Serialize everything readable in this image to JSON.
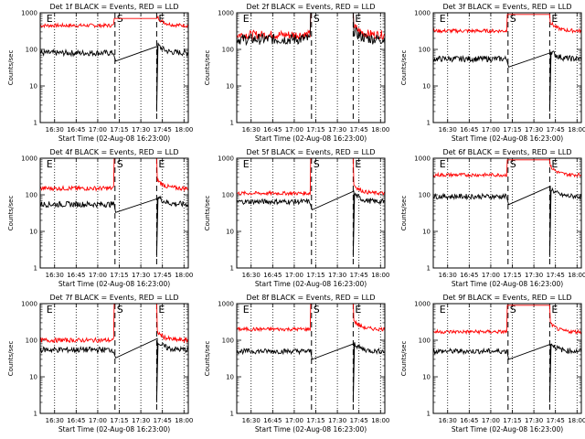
{
  "chart_data": [
    {
      "type": "line",
      "title": "Det 1f BLACK = Events, RED = LLD",
      "ylabel": "Counts/sec",
      "xlabel": "Start Time (02-Aug-08 16:23:00)",
      "yscale": "log",
      "ylim": [
        1,
        1000
      ],
      "xlim": [
        "16:20",
        "18:03"
      ],
      "x_tick_labels": [
        "16:30",
        "16:45",
        "17:00",
        "17:15",
        "17:30",
        "17:45",
        "18:00"
      ],
      "y_tick_labels": [
        "1",
        "10",
        "100",
        "1000"
      ],
      "markers": [
        {
          "label": "E",
          "time": "16:23"
        },
        {
          "label": "S",
          "time": "17:12"
        },
        {
          "label": "E",
          "time": "17:41"
        }
      ],
      "series": [
        {
          "name": "RED = LLD",
          "color": "#ff0000",
          "flat": 450,
          "spike": 700,
          "noise": 0.05
        },
        {
          "name": "BLACK = Events",
          "color": "#000000",
          "flat": 80,
          "spike": 80,
          "noise": 0.08
        }
      ]
    },
    {
      "type": "line",
      "title": "Det 2f BLACK = Events, RED = LLD",
      "ylabel": "Counts/sec",
      "xlabel": "Start Time (02-Aug-08 16:23:00)",
      "yscale": "log",
      "ylim": [
        1,
        1000
      ],
      "xlim": [
        "16:20",
        "18:03"
      ],
      "x_tick_labels": [
        "16:30",
        "16:45",
        "17:00",
        "17:15",
        "17:30",
        "17:45",
        "18:00"
      ],
      "y_tick_labels": [
        "1",
        "10",
        "100",
        "1000"
      ],
      "markers": [
        {
          "label": "E",
          "time": "16:23"
        },
        {
          "label": "S",
          "time": "17:12"
        },
        {
          "label": "E",
          "time": "17:41"
        }
      ],
      "series": [
        {
          "name": "RED = LLD",
          "color": "#ff0000",
          "flat": 250,
          "spike": 1300,
          "noise": 0.12
        },
        {
          "name": "BLACK = Events",
          "color": "#000000",
          "flat": 190,
          "spike": 1300,
          "noise": 0.15
        }
      ]
    },
    {
      "type": "line",
      "title": "Det 3f BLACK = Events, RED = LLD",
      "ylabel": "Counts/sec",
      "xlabel": "Start Time (02-Aug-08 16:23:00)",
      "yscale": "log",
      "ylim": [
        1,
        1000
      ],
      "xlim": [
        "16:20",
        "18:03"
      ],
      "x_tick_labels": [
        "16:30",
        "16:45",
        "17:00",
        "17:15",
        "17:30",
        "17:45",
        "18:00"
      ],
      "y_tick_labels": [
        "1",
        "10",
        "100",
        "1000"
      ],
      "markers": [
        {
          "label": "E",
          "time": "16:23"
        },
        {
          "label": "S",
          "time": "17:12"
        },
        {
          "label": "E",
          "time": "17:41"
        }
      ],
      "series": [
        {
          "name": "RED = LLD",
          "color": "#ff0000",
          "flat": 320,
          "spike": 900,
          "noise": 0.05
        },
        {
          "name": "BLACK = Events",
          "color": "#000000",
          "flat": 55,
          "spike": 55,
          "noise": 0.08
        }
      ]
    },
    {
      "type": "line",
      "title": "Det 4f BLACK = Events, RED = LLD",
      "ylabel": "Counts/sec",
      "xlabel": "Start Time (02-Aug-08 16:23:00)",
      "yscale": "log",
      "ylim": [
        1,
        1000
      ],
      "xlim": [
        "16:20",
        "18:03"
      ],
      "x_tick_labels": [
        "16:30",
        "16:45",
        "17:00",
        "17:15",
        "17:30",
        "17:45",
        "18:00"
      ],
      "y_tick_labels": [
        "1",
        "10",
        "100",
        "1000"
      ],
      "markers": [
        {
          "label": "E",
          "time": "16:23"
        },
        {
          "label": "S",
          "time": "17:12"
        },
        {
          "label": "E",
          "time": "17:41"
        }
      ],
      "series": [
        {
          "name": "RED = LLD",
          "color": "#ff0000",
          "flat": 150,
          "spike": 1300,
          "noise": 0.06
        },
        {
          "name": "BLACK = Events",
          "color": "#000000",
          "flat": 55,
          "spike": 55,
          "noise": 0.08
        }
      ]
    },
    {
      "type": "line",
      "title": "Det 5f BLACK = Events, RED = LLD",
      "ylabel": "Counts/sec",
      "xlabel": "Start Time (02-Aug-08 16:23:00)",
      "yscale": "log",
      "ylim": [
        1,
        1000
      ],
      "xlim": [
        "16:20",
        "18:03"
      ],
      "x_tick_labels": [
        "16:30",
        "16:45",
        "17:00",
        "17:15",
        "17:30",
        "17:45",
        "18:00"
      ],
      "y_tick_labels": [
        "1",
        "10",
        "100",
        "1000"
      ],
      "markers": [
        {
          "label": "E",
          "time": "16:23"
        },
        {
          "label": "S",
          "time": "17:12"
        },
        {
          "label": "E",
          "time": "17:41"
        }
      ],
      "series": [
        {
          "name": "RED = LLD",
          "color": "#ff0000",
          "flat": 110,
          "spike": 1300,
          "noise": 0.05
        },
        {
          "name": "BLACK = Events",
          "color": "#000000",
          "flat": 65,
          "spike": 65,
          "noise": 0.07
        }
      ]
    },
    {
      "type": "line",
      "title": "Det 6f BLACK = Events, RED = LLD",
      "ylabel": "Counts/sec",
      "xlabel": "Start Time (02-Aug-08 16:23:00)",
      "yscale": "log",
      "ylim": [
        1,
        1000
      ],
      "xlim": [
        "16:20",
        "18:03"
      ],
      "x_tick_labels": [
        "16:30",
        "16:45",
        "17:00",
        "17:15",
        "17:30",
        "17:45",
        "18:00"
      ],
      "y_tick_labels": [
        "1",
        "10",
        "100",
        "1000"
      ],
      "markers": [
        {
          "label": "E",
          "time": "16:23"
        },
        {
          "label": "S",
          "time": "17:12"
        },
        {
          "label": "E",
          "time": "17:41"
        }
      ],
      "series": [
        {
          "name": "RED = LLD",
          "color": "#ff0000",
          "flat": 350,
          "spike": 900,
          "noise": 0.05
        },
        {
          "name": "BLACK = Events",
          "color": "#000000",
          "flat": 90,
          "spike": 90,
          "noise": 0.07
        }
      ]
    },
    {
      "type": "line",
      "title": "Det 7f BLACK = Events, RED = LLD",
      "ylabel": "Counts/sec",
      "xlabel": "Start Time (02-Aug-08 16:23:00)",
      "yscale": "log",
      "ylim": [
        1,
        1000
      ],
      "xlim": [
        "16:20",
        "18:03"
      ],
      "x_tick_labels": [
        "16:30",
        "16:45",
        "17:00",
        "17:15",
        "17:30",
        "17:45",
        "18:00"
      ],
      "y_tick_labels": [
        "1",
        "10",
        "100",
        "1000"
      ],
      "markers": [
        {
          "label": "E",
          "time": "16:23"
        },
        {
          "label": "S",
          "time": "17:12"
        },
        {
          "label": "E",
          "time": "17:41"
        }
      ],
      "series": [
        {
          "name": "RED = LLD",
          "color": "#ff0000",
          "flat": 100,
          "spike": 1300,
          "noise": 0.06
        },
        {
          "name": "BLACK = Events",
          "color": "#000000",
          "flat": 55,
          "spike": 55,
          "noise": 0.08
        }
      ]
    },
    {
      "type": "line",
      "title": "Det 8f BLACK = Events, RED = LLD",
      "ylabel": "Counts/sec",
      "xlabel": "Start Time (02-Aug-08 16:23:00)",
      "yscale": "log",
      "ylim": [
        1,
        1000
      ],
      "xlim": [
        "16:20",
        "18:03"
      ],
      "x_tick_labels": [
        "16:30",
        "16:45",
        "17:00",
        "17:15",
        "17:30",
        "17:45",
        "18:00"
      ],
      "y_tick_labels": [
        "1",
        "10",
        "100",
        "1000"
      ],
      "markers": [
        {
          "label": "E",
          "time": "16:23"
        },
        {
          "label": "S",
          "time": "17:12"
        },
        {
          "label": "E",
          "time": "17:41"
        }
      ],
      "series": [
        {
          "name": "RED = LLD",
          "color": "#ff0000",
          "flat": 200,
          "spike": 1300,
          "noise": 0.05
        },
        {
          "name": "BLACK = Events",
          "color": "#000000",
          "flat": 50,
          "spike": 50,
          "noise": 0.07
        }
      ]
    },
    {
      "type": "line",
      "title": "Det 9f BLACK = Events, RED = LLD",
      "ylabel": "Counts/sec",
      "xlabel": "Start Time (02-Aug-08 16:23:00)",
      "yscale": "log",
      "ylim": [
        1,
        1000
      ],
      "xlim": [
        "16:20",
        "18:03"
      ],
      "x_tick_labels": [
        "16:30",
        "16:45",
        "17:00",
        "17:15",
        "17:30",
        "17:45",
        "18:00"
      ],
      "y_tick_labels": [
        "1",
        "10",
        "100",
        "1000"
      ],
      "markers": [
        {
          "label": "E",
          "time": "16:23"
        },
        {
          "label": "S",
          "time": "17:12"
        },
        {
          "label": "E",
          "time": "17:41"
        }
      ],
      "series": [
        {
          "name": "RED = LLD",
          "color": "#ff0000",
          "flat": 170,
          "spike": 900,
          "noise": 0.05
        },
        {
          "name": "BLACK = Events",
          "color": "#000000",
          "flat": 50,
          "spike": 50,
          "noise": 0.07
        }
      ]
    }
  ]
}
